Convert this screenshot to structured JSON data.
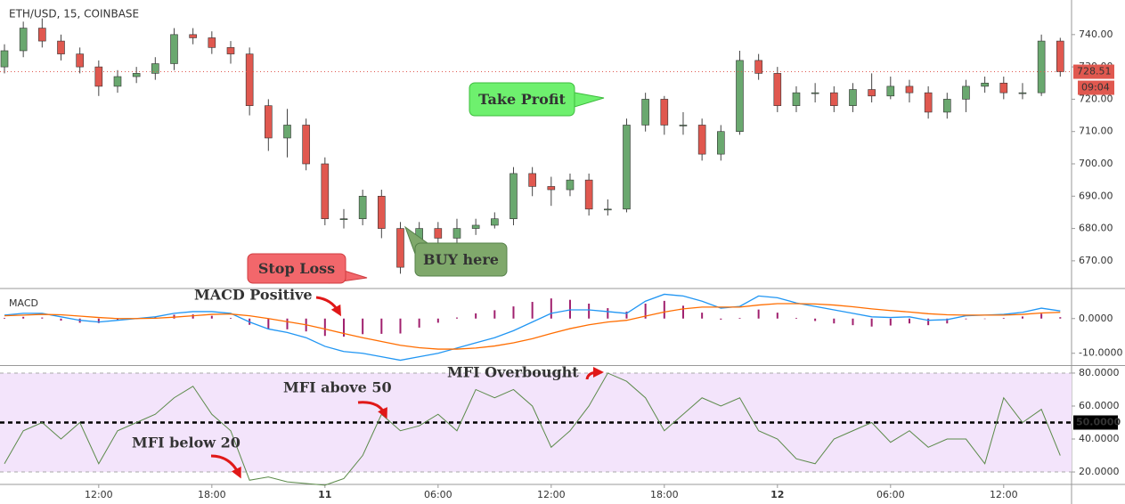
{
  "chart_data": [
    {
      "type": "candlestick",
      "title": "ETH/USD, 15, COINBASE",
      "open": [
        730,
        735,
        742,
        738,
        734,
        730,
        724,
        727,
        728,
        731,
        740,
        739,
        736,
        734,
        718,
        708,
        712,
        700,
        683,
        683,
        690,
        680,
        668,
        680,
        677,
        680,
        681,
        683,
        697,
        693,
        692,
        695,
        686,
        686,
        712,
        720,
        712,
        712,
        703,
        710,
        732,
        728,
        718,
        722,
        722,
        718,
        723,
        721,
        724,
        722,
        716,
        720,
        724,
        725,
        722,
        722,
        738
      ],
      "high": [
        737,
        744,
        745,
        740,
        736,
        732,
        729,
        730,
        733,
        742,
        742,
        741,
        738,
        736,
        720,
        717,
        714,
        702,
        686,
        692,
        692,
        682,
        682,
        682,
        683,
        683,
        685,
        699,
        699,
        696,
        697,
        697,
        689,
        714,
        722,
        721,
        716,
        714,
        712,
        735,
        734,
        730,
        724,
        725,
        724,
        725,
        728,
        727,
        726,
        724,
        722,
        726,
        727,
        727,
        725,
        740,
        739
      ],
      "low": [
        728,
        733,
        736,
        732,
        728,
        721,
        722,
        725,
        726,
        729,
        737,
        734,
        731,
        715,
        704,
        702,
        698,
        681,
        680,
        681,
        677,
        666,
        666,
        672,
        675,
        678,
        680,
        681,
        690,
        687,
        690,
        684,
        684,
        685,
        710,
        709,
        709,
        701,
        701,
        709,
        726,
        716,
        716,
        719,
        716,
        716,
        719,
        720,
        719,
        714,
        714,
        716,
        722,
        720,
        720,
        721,
        727
      ],
      "close": [
        735,
        742,
        738,
        734,
        730,
        724,
        727,
        728,
        731,
        740,
        739,
        736,
        734,
        718,
        708,
        712,
        700,
        683,
        683,
        690,
        680,
        668,
        680,
        677,
        680,
        681,
        683,
        697,
        693,
        692,
        695,
        686,
        686,
        712,
        720,
        712,
        712,
        703,
        710,
        732,
        728,
        718,
        722,
        722,
        718,
        723,
        721,
        724,
        722,
        716,
        720,
        724,
        725,
        722,
        722,
        738,
        728.51
      ],
      "up_color": "#6aa86f",
      "down_color": "#e0584f",
      "ylim": [
        661.7,
        750.7
      ],
      "yticks": [
        {
          "value": 670,
          "label": "670.00"
        },
        {
          "value": 680,
          "label": "680.00"
        },
        {
          "value": 690,
          "label": "690.00"
        },
        {
          "value": 700,
          "label": "700.00"
        },
        {
          "value": 710,
          "label": "710.00"
        },
        {
          "value": 720,
          "label": "720.00"
        },
        {
          "value": 730,
          "label": "730.00"
        },
        {
          "value": 740,
          "label": "740.00"
        }
      ],
      "last_price": 728.51,
      "countdown": "09:04",
      "annotations": [
        "Take Profit",
        "Stop Loss",
        "BUY here"
      ]
    },
    {
      "type": "macd",
      "title": "MACD",
      "series": [
        {
          "color": "#2196f3",
          "values": [
            1,
            1.5,
            1.5,
            0.5,
            -0.5,
            -1,
            -0.5,
            0,
            0.5,
            1.5,
            2,
            2,
            1.5,
            -1,
            -3,
            -4,
            -5.5,
            -8,
            -9.5,
            -10,
            -11,
            -12,
            -11,
            -10,
            -8.5,
            -7,
            -5.5,
            -3.5,
            -1,
            1.5,
            2.5,
            2.5,
            2,
            1.5,
            5,
            7,
            6.5,
            5,
            3,
            3.5,
            6.5,
            6,
            4.5,
            3.5,
            2.5,
            1.5,
            0.5,
            0.3,
            0.5,
            -0.5,
            -0.3,
            0.8,
            1,
            1.2,
            1.8,
            3,
            2.2
          ]
        },
        {
          "color": "#ff6d00",
          "values": [
            0.8,
            1,
            1.2,
            1.1,
            0.7,
            0.3,
            0,
            0,
            0.1,
            0.4,
            0.8,
            1.2,
            1.3,
            0.8,
            0,
            -0.9,
            -1.8,
            -3,
            -4.3,
            -5.5,
            -6.6,
            -7.7,
            -8.4,
            -8.8,
            -8.8,
            -8.5,
            -7.9,
            -7,
            -5.8,
            -4.3,
            -2.9,
            -1.8,
            -1,
            -0.5,
            0.7,
            1.9,
            2.8,
            3.3,
            3.3,
            3.3,
            3.9,
            4.3,
            4.3,
            4.2,
            3.9,
            3.4,
            2.8,
            2.3,
            1.9,
            1.4,
            1.1,
            1,
            1,
            1,
            1.2,
            1.6,
            1.8
          ]
        }
      ],
      "histogram": {
        "color": "#a0206e",
        "values": [
          0.2,
          0.5,
          0.3,
          -0.6,
          -1.2,
          -1.3,
          -0.5,
          0,
          0.4,
          1.1,
          1.2,
          0.8,
          0.2,
          -1.8,
          -3,
          -3.1,
          -3.7,
          -5,
          -5.2,
          -4.5,
          -4.4,
          -4.3,
          -2.6,
          -1.2,
          0.3,
          1.5,
          2.4,
          3.5,
          4.8,
          5.8,
          5.4,
          4.3,
          3,
          2,
          4.3,
          5.1,
          3.7,
          1.7,
          -0.3,
          0.2,
          2.6,
          1.7,
          0.2,
          -0.7,
          -1.4,
          -1.9,
          -2.3,
          -2,
          -1.4,
          -1.9,
          -1.4,
          -0.2,
          0,
          0.2,
          0.6,
          1.4,
          0.4
        ]
      },
      "ylim": [
        -13.4,
        8.4
      ],
      "yticks": [
        {
          "value": 0,
          "label": "0.0000"
        },
        {
          "value": -10,
          "label": "-10.0000"
        }
      ],
      "annotations": [
        "MACD Positive"
      ]
    },
    {
      "type": "line",
      "title": "MFI",
      "color": "#5b8a4a",
      "values": [
        25,
        45,
        50,
        40,
        50,
        25,
        45,
        50,
        55,
        65,
        72,
        55,
        45,
        15,
        17,
        14,
        13,
        12,
        16,
        30,
        55,
        45,
        48,
        55,
        45,
        70,
        65,
        70,
        60,
        35,
        45,
        60,
        80,
        75,
        65,
        45,
        55,
        65,
        60,
        65,
        45,
        40,
        28,
        25,
        40,
        45,
        50,
        38,
        45,
        35,
        40,
        40,
        25,
        65,
        50,
        58,
        30
      ],
      "ylim": [
        13,
        84.3
      ],
      "yticks": [
        {
          "value": 20,
          "label": "20.0000"
        },
        {
          "value": 40,
          "label": "40.0000"
        },
        {
          "value": 60,
          "label": "60.0000"
        },
        {
          "value": 80,
          "label": "80.0000"
        }
      ],
      "band": [
        20,
        80
      ],
      "band_color": "#f3e4fb",
      "midline": {
        "value": 50,
        "label": "50.0000"
      },
      "xlim": [
        -0.236,
        56.6
      ],
      "xticks": [
        {
          "value": 5,
          "label": "12:00"
        },
        {
          "value": 11,
          "label": "18:00"
        },
        {
          "value": 17,
          "label": "11"
        },
        {
          "value": 23,
          "label": "06:00"
        },
        {
          "value": 29,
          "label": "12:00"
        },
        {
          "value": 35,
          "label": "18:00"
        },
        {
          "value": 41,
          "label": "12"
        },
        {
          "value": 47,
          "label": "06:00"
        },
        {
          "value": 53,
          "label": "12:00"
        }
      ],
      "annotations": [
        "MFI above 50",
        "MFI below 20",
        "MFI Overbought"
      ]
    }
  ]
}
